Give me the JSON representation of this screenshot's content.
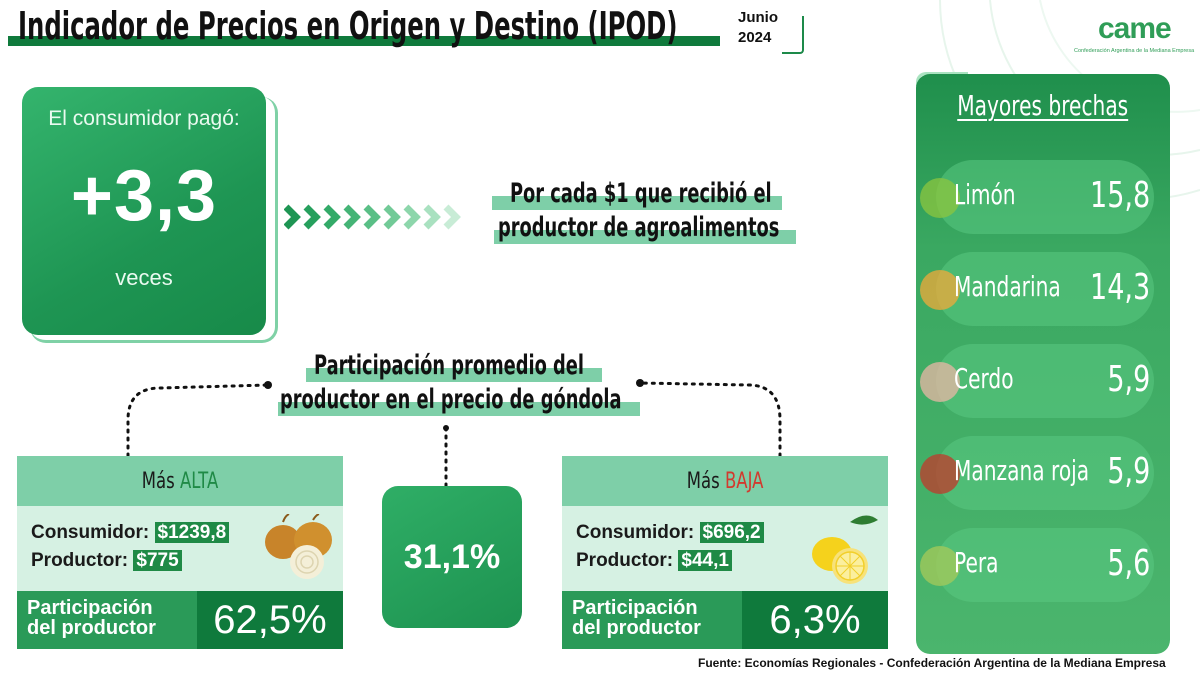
{
  "header": {
    "title": "Indicador de Precios en Origen y Destino (IPOD)",
    "month": "Junio",
    "year": "2024",
    "logo_text": "came",
    "logo_subtitle": "Confederación Argentina de la Mediana Empresa"
  },
  "consumer": {
    "label": "El consumidor pagó:",
    "value": "+3,3",
    "unit": "veces"
  },
  "per_peso": {
    "line1": "Por cada $1 que recibió el",
    "line2": "productor de agroalimentos"
  },
  "participation": {
    "line1": "Participación promedio del",
    "line2": "productor en el precio de góndola",
    "average": "31,1%"
  },
  "alta": {
    "header_prefix": "Más",
    "header_word": "ALTA",
    "consumer_label": "Consumidor:",
    "consumer_value": "$1239,8",
    "producer_label": "Productor:",
    "producer_value": "$775",
    "share_label_1": "Participación",
    "share_label_2": "del productor",
    "share_value": "62,5%",
    "product_icon": "onion-icon"
  },
  "baja": {
    "header_prefix": "Más",
    "header_word": "BAJA",
    "consumer_label": "Consumidor:",
    "consumer_value": "$696,2",
    "producer_label": "Productor:",
    "producer_value": "$44,1",
    "share_label_1": "Participación",
    "share_label_2": "del productor",
    "share_value": "6,3%",
    "product_icon": "lemon-icon"
  },
  "brechas": {
    "title": "Mayores brechas",
    "items": [
      {
        "name": "Limón",
        "value": "15,8"
      },
      {
        "name": "Mandarina",
        "value": "14,3"
      },
      {
        "name": "Cerdo",
        "value": "5,9"
      },
      {
        "name": "Manzana roja",
        "value": "5,9"
      },
      {
        "name": "Pera",
        "value": "5,6"
      }
    ]
  },
  "footer": {
    "source": "Fuente: Economías Regionales - Confederación Argentina de la Mediana Empresa"
  },
  "colors": {
    "brand_green": "#0f7a3c",
    "light_green": "#7ecfa8",
    "pale_green": "#d6f1e3",
    "alert_red": "#d23a2e"
  }
}
